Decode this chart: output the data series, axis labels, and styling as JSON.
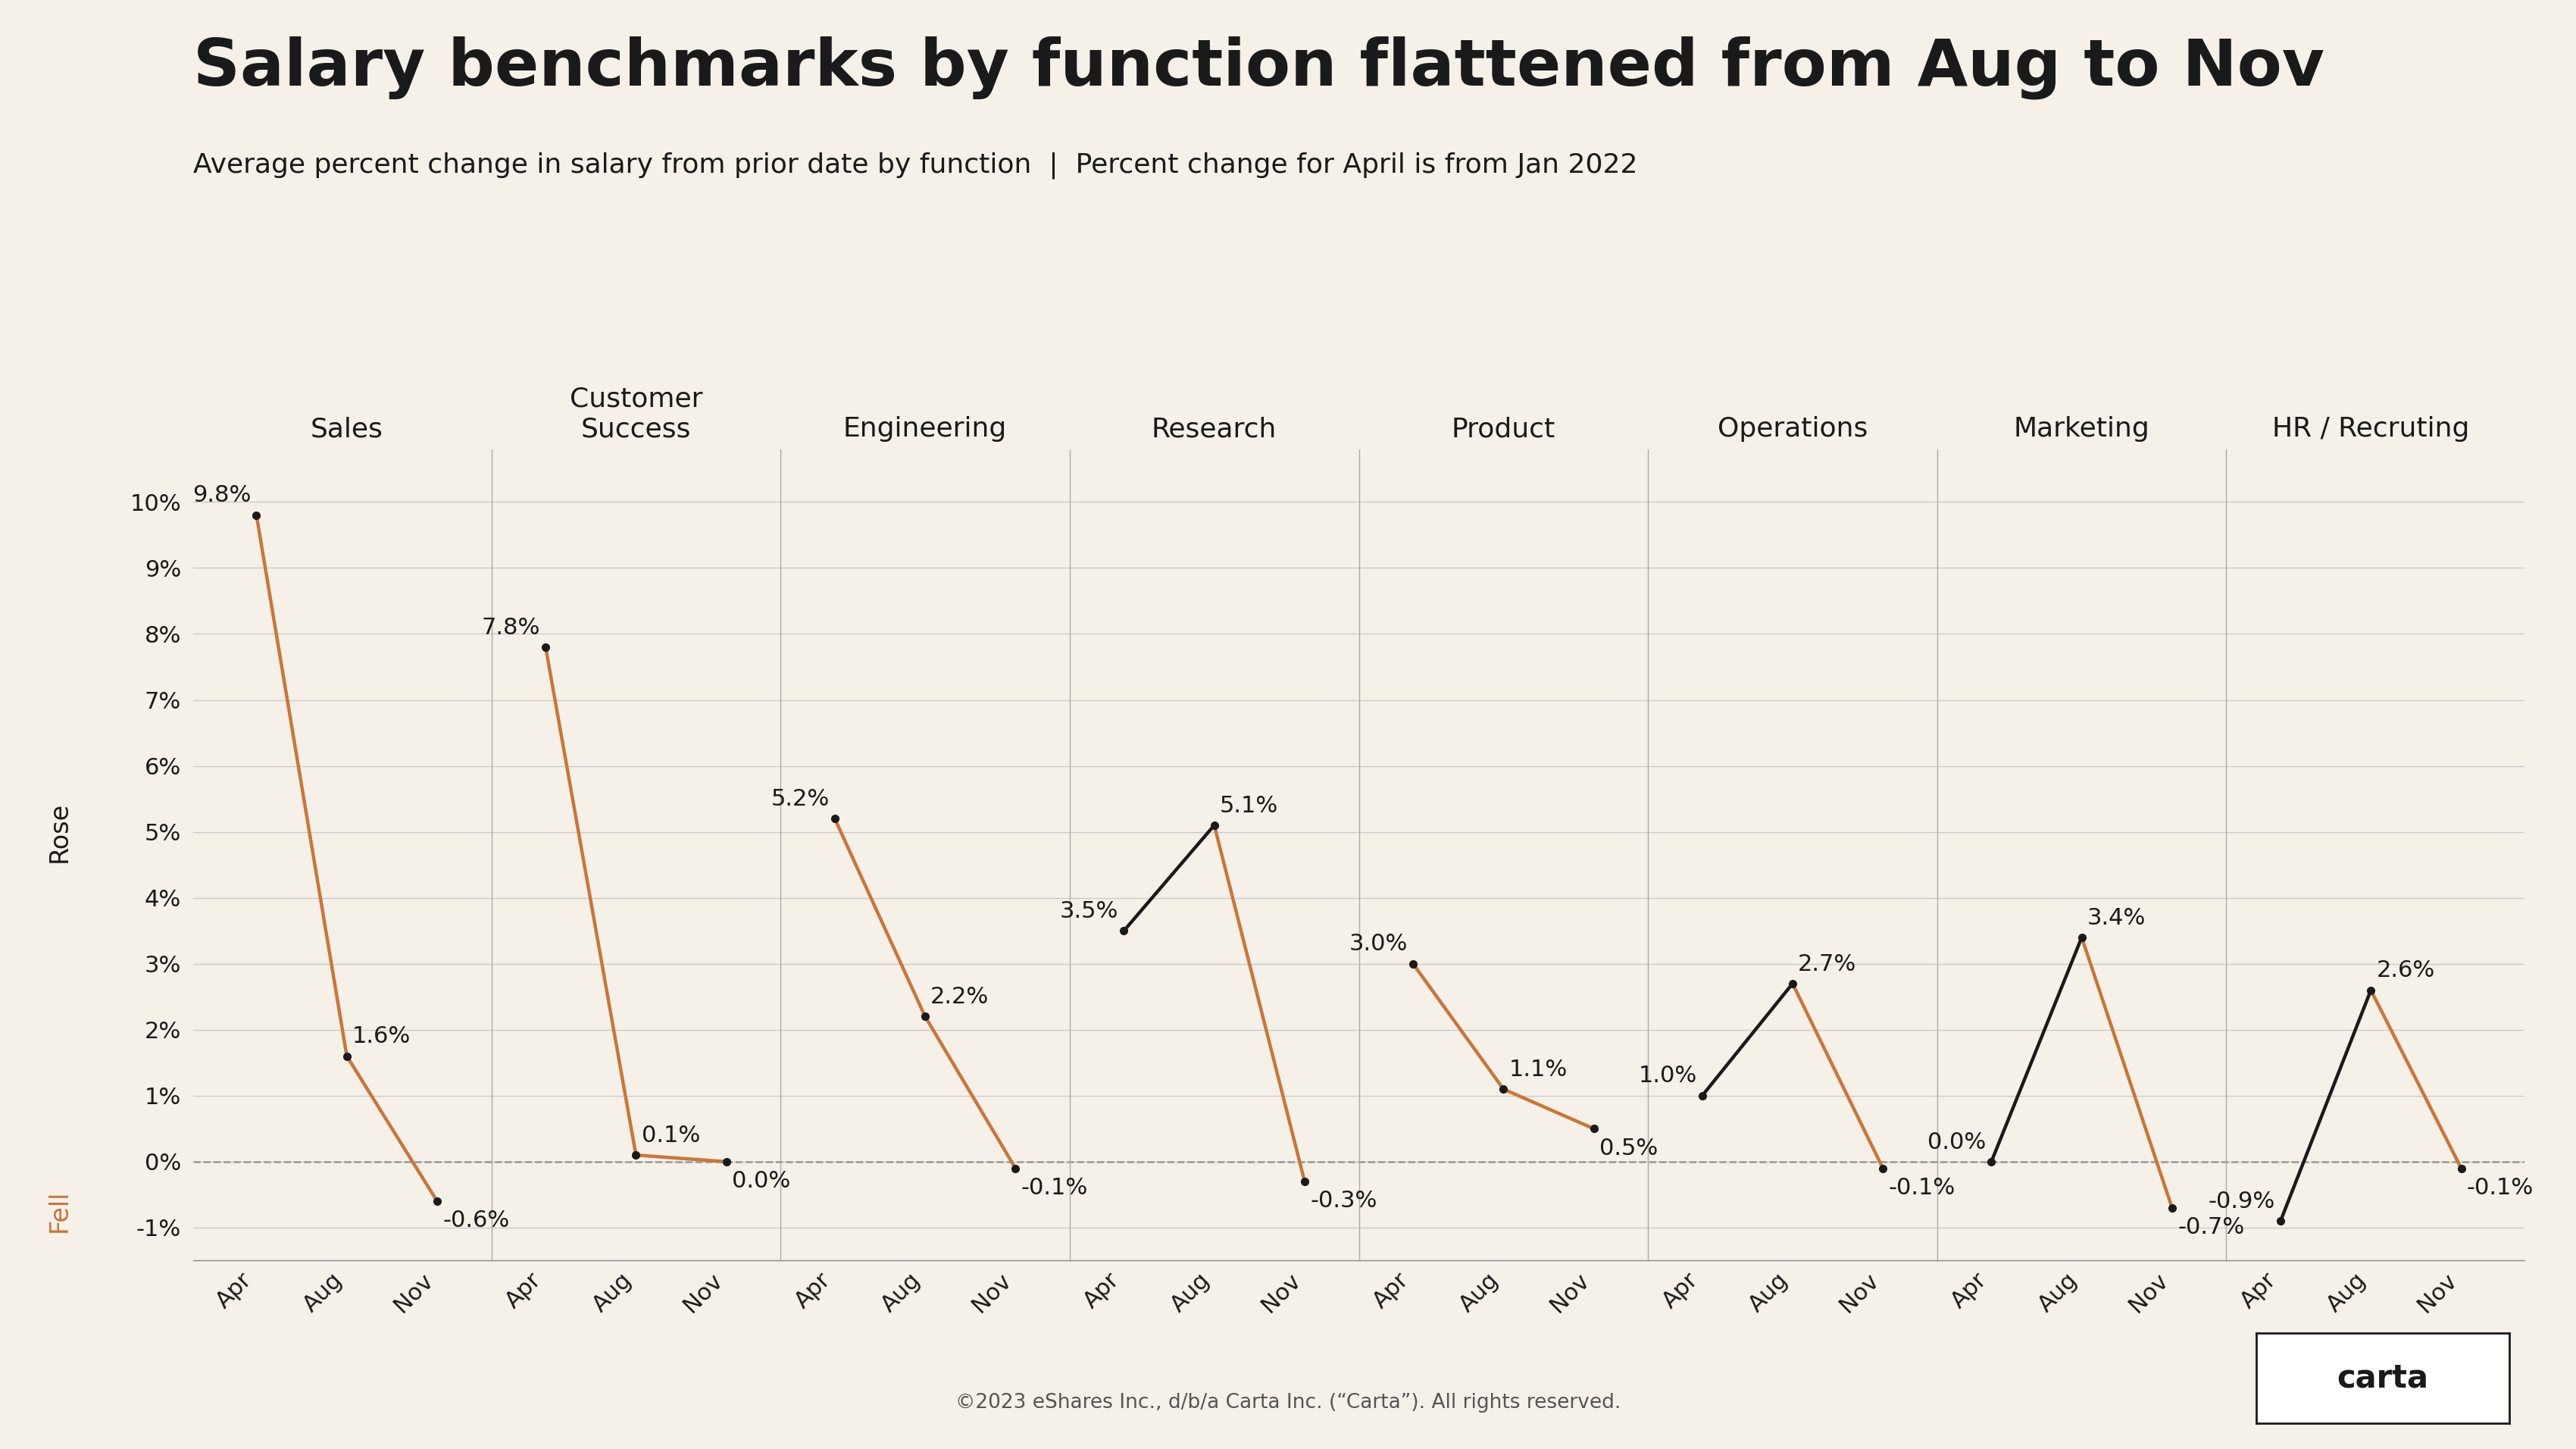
{
  "title": "Salary benchmarks by function flattened from Aug to Nov",
  "subtitle": "Average percent change in salary from prior date by function  |  Percent change for April is from Jan 2022",
  "background_color": "#f5f0e8",
  "grid_color": "#c8c8c8",
  "zero_line_color": "#999999",
  "functions": [
    "Sales",
    "Customer\nSuccess",
    "Engineering",
    "Research",
    "Product",
    "Operations",
    "Marketing",
    "HR / Recruting"
  ],
  "x_labels": [
    "Apr",
    "Aug",
    "Nov"
  ],
  "data": [
    [
      9.8,
      1.6,
      -0.6
    ],
    [
      7.8,
      0.1,
      0.0
    ],
    [
      5.2,
      2.2,
      -0.1
    ],
    [
      3.5,
      5.1,
      -0.3
    ],
    [
      3.0,
      1.1,
      0.5
    ],
    [
      1.0,
      2.7,
      -0.1
    ],
    [
      0.0,
      3.4,
      -0.7
    ],
    [
      -0.9,
      2.6,
      -0.1
    ]
  ],
  "ylim": [
    -1.5,
    10.8
  ],
  "yticks": [
    -1,
    0,
    1,
    2,
    3,
    4,
    5,
    6,
    7,
    8,
    9,
    10
  ],
  "ytick_labels": [
    "-1%",
    "0%",
    "1%",
    "2%",
    "3%",
    "4%",
    "5%",
    "6%",
    "7%",
    "8%",
    "9%",
    "10%"
  ],
  "rose_label": "Rose",
  "fell_label": "Fell",
  "footer": "©2023 eShares Inc., d/b/a Carta Inc. (“Carta”). All rights reserved.",
  "line_color_black": "#1a1a1a",
  "line_color_orange": "#c8763a",
  "title_fontsize": 62,
  "subtitle_fontsize": 26,
  "rose_fell_fontsize": 24,
  "tick_fontsize": 22,
  "annotation_fontsize": 22,
  "function_label_fontsize": 26,
  "footer_fontsize": 19,
  "carta_fontsize": 30
}
